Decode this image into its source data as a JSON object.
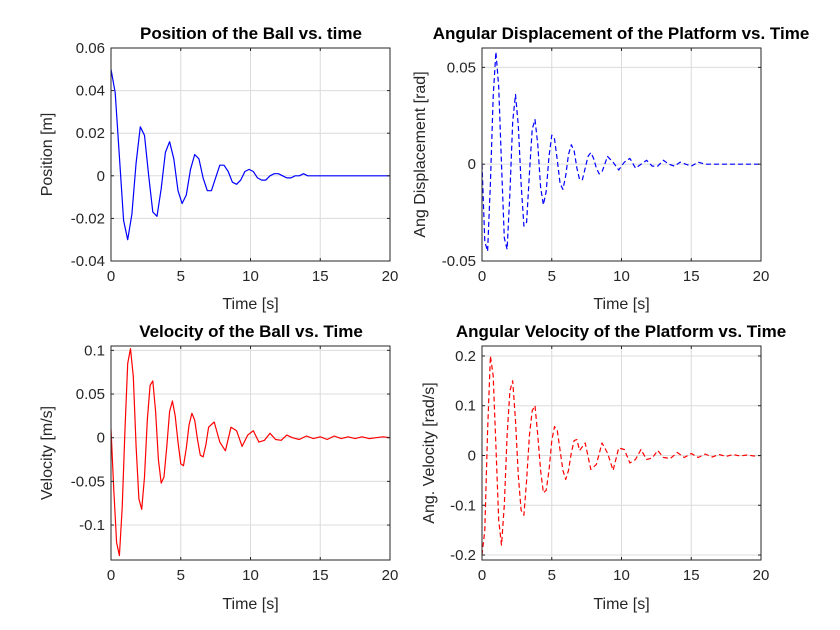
{
  "chart_data": [
    {
      "type": "line",
      "title": "Position of the Ball vs. time",
      "xlabel": "Time [s]",
      "ylabel": "Position [m]",
      "xlim": [
        0,
        20
      ],
      "ylim": [
        -0.04,
        0.06
      ],
      "xticks": [
        0,
        5,
        10,
        15,
        20
      ],
      "xtick_labels": [
        "0",
        "5",
        "10",
        "15",
        "20"
      ],
      "yticks": [
        -0.04,
        -0.02,
        0,
        0.02,
        0.04,
        0.06
      ],
      "ytick_labels": [
        "-0.04",
        "-0.02",
        "0",
        "0.02",
        "0.04",
        "0.06"
      ],
      "grid": true,
      "line_style": "solid",
      "color": "#0000ff",
      "series": [
        {
          "x": [
            0,
            0.3,
            0.6,
            0.9,
            1.2,
            1.5,
            1.8,
            2.1,
            2.4,
            2.7,
            3.0,
            3.3,
            3.6,
            3.9,
            4.2,
            4.5,
            4.8,
            5.1,
            5.4,
            5.7,
            6.0,
            6.3,
            6.6,
            6.9,
            7.2,
            7.5,
            7.8,
            8.1,
            8.4,
            8.7,
            9.0,
            9.3,
            9.6,
            9.9,
            10.2,
            10.5,
            10.8,
            11.1,
            11.4,
            11.7,
            12.0,
            12.3,
            12.6,
            12.9,
            13.2,
            13.5,
            13.8,
            14.1,
            14.4,
            14.7,
            15.0,
            15.3,
            15.6,
            15.9,
            16.2,
            16.5,
            16.8,
            17.1,
            17.4,
            17.7,
            18.0,
            18.3,
            18.6,
            18.9,
            19.2,
            19.5,
            19.8,
            20.0
          ],
          "y": [
            0.05,
            0.039,
            0.009,
            -0.021,
            -0.03,
            -0.018,
            0.006,
            0.023,
            0.019,
            0.0,
            -0.017,
            -0.019,
            -0.006,
            0.011,
            0.016,
            0.008,
            -0.007,
            -0.013,
            -0.009,
            0.003,
            0.01,
            0.008,
            -0.001,
            -0.007,
            -0.007,
            -0.001,
            0.005,
            0.005,
            0.002,
            -0.003,
            -0.004,
            -0.002,
            0.002,
            0.003,
            0.002,
            -0.001,
            -0.002,
            -0.002,
            0.0,
            0.001,
            0.001,
            0.0,
            -0.001,
            -0.001,
            0.0,
            0.0,
            0.001,
            0.0,
            0.0,
            0.0,
            0.0,
            0.0,
            0.0,
            0.0,
            0.0,
            0.0,
            0.0,
            0.0,
            0.0,
            0.0,
            0.0,
            0.0,
            0.0,
            0.0,
            0.0,
            0.0,
            0.0,
            0.0
          ]
        }
      ]
    },
    {
      "type": "line",
      "title": "Angular Displacement of the Platform vs. Time",
      "xlabel": "Time [s]",
      "ylabel": "Ang Displacement [rad]",
      "xlim": [
        0,
        20
      ],
      "ylim": [
        -0.05,
        0.06
      ],
      "xticks": [
        0,
        5,
        10,
        15,
        20
      ],
      "xtick_labels": [
        "0",
        "5",
        "10",
        "15",
        "20"
      ],
      "yticks": [
        -0.05,
        0,
        0.05
      ],
      "ytick_labels": [
        "-0.05",
        "0",
        "0.05"
      ],
      "grid": true,
      "line_style": "dashed",
      "color": "#0000ff",
      "series": [
        {
          "x": [
            0,
            0.2,
            0.4,
            0.6,
            0.8,
            1.0,
            1.2,
            1.4,
            1.6,
            1.8,
            2.0,
            2.2,
            2.4,
            2.6,
            2.8,
            3.0,
            3.2,
            3.4,
            3.6,
            3.8,
            4.0,
            4.2,
            4.4,
            4.6,
            4.8,
            5.0,
            5.2,
            5.4,
            5.6,
            5.8,
            6.0,
            6.2,
            6.4,
            6.6,
            6.8,
            7.0,
            7.2,
            7.4,
            7.6,
            7.8,
            8.0,
            8.2,
            8.4,
            8.6,
            8.8,
            9.0,
            9.4,
            9.8,
            10.2,
            10.6,
            11.0,
            11.4,
            11.8,
            12.2,
            12.6,
            13.0,
            13.4,
            13.8,
            14.2,
            14.6,
            15.0,
            15.5,
            16.0,
            16.5,
            17.0,
            17.5,
            18.0,
            18.5,
            19.0,
            19.5,
            20.0
          ],
          "y": [
            0.0,
            -0.04,
            -0.045,
            -0.01,
            0.035,
            0.058,
            0.04,
            0.0,
            -0.038,
            -0.044,
            -0.015,
            0.022,
            0.036,
            0.02,
            -0.01,
            -0.032,
            -0.03,
            -0.005,
            0.018,
            0.023,
            0.01,
            -0.012,
            -0.021,
            -0.014,
            0.004,
            0.015,
            0.013,
            0.002,
            -0.01,
            -0.013,
            -0.006,
            0.005,
            0.01,
            0.007,
            -0.002,
            -0.008,
            -0.008,
            -0.002,
            0.004,
            0.006,
            0.003,
            -0.002,
            -0.005,
            -0.004,
            0.0,
            0.004,
            0.001,
            -0.003,
            0.001,
            0.003,
            -0.002,
            0.0,
            0.002,
            -0.001,
            -0.001,
            0.002,
            0.0,
            -0.001,
            0.001,
            0.0,
            -0.001,
            0.001,
            0.0,
            0.0,
            0.0,
            0.0,
            0.0,
            0.0,
            0.0,
            0.0,
            0.0
          ]
        }
      ]
    },
    {
      "type": "line",
      "title": "Velocity of the Ball vs. Time",
      "xlabel": "Time [s]",
      "ylabel": "Velocity [m/s]",
      "xlim": [
        0,
        20
      ],
      "ylim": [
        -0.14,
        0.105
      ],
      "xticks": [
        0,
        5,
        10,
        15,
        20
      ],
      "xtick_labels": [
        "0",
        "5",
        "10",
        "15",
        "20"
      ],
      "yticks": [
        -0.1,
        -0.05,
        0,
        0.05,
        0.1
      ],
      "ytick_labels": [
        "-0.1",
        "-0.05",
        "0",
        "0.05",
        "0.1"
      ],
      "grid": true,
      "line_style": "solid",
      "color": "#ff0000",
      "series": [
        {
          "x": [
            0,
            0.2,
            0.4,
            0.6,
            0.8,
            1.0,
            1.2,
            1.4,
            1.6,
            1.8,
            2.0,
            2.2,
            2.4,
            2.6,
            2.8,
            3.0,
            3.2,
            3.4,
            3.6,
            3.8,
            4.0,
            4.2,
            4.4,
            4.6,
            4.8,
            5.0,
            5.2,
            5.4,
            5.6,
            5.8,
            6.0,
            6.2,
            6.4,
            6.6,
            6.8,
            7.0,
            7.4,
            7.8,
            8.2,
            8.6,
            9.0,
            9.4,
            9.8,
            10.2,
            10.6,
            11.0,
            11.4,
            11.8,
            12.2,
            12.6,
            13.0,
            13.5,
            14.0,
            14.5,
            15.0,
            15.5,
            16.0,
            16.5,
            17.0,
            17.5,
            18.0,
            18.5,
            19.0,
            19.5,
            20.0
          ],
          "y": [
            0.01,
            -0.06,
            -0.12,
            -0.135,
            -0.08,
            0.01,
            0.085,
            0.102,
            0.07,
            -0.01,
            -0.07,
            -0.082,
            -0.045,
            0.02,
            0.06,
            0.065,
            0.03,
            -0.025,
            -0.052,
            -0.045,
            -0.01,
            0.03,
            0.042,
            0.025,
            -0.005,
            -0.03,
            -0.032,
            -0.012,
            0.015,
            0.028,
            0.02,
            -0.002,
            -0.02,
            -0.022,
            -0.008,
            0.012,
            0.018,
            -0.005,
            -0.015,
            0.012,
            0.008,
            -0.01,
            0.003,
            0.008,
            -0.005,
            -0.003,
            0.005,
            -0.002,
            -0.003,
            0.003,
            0.0,
            -0.002,
            0.002,
            -0.001,
            0.001,
            -0.002,
            0.002,
            -0.001,
            0.001,
            -0.001,
            0.001,
            -0.001,
            0.0,
            0.001,
            0.0
          ]
        }
      ]
    },
    {
      "type": "line",
      "title": "Angular Velocity of the Platform vs. Time",
      "xlabel": "Time [s]",
      "ylabel": "Ang. Velocity [rad/s]",
      "xlim": [
        0,
        20
      ],
      "ylim": [
        -0.21,
        0.22
      ],
      "xticks": [
        0,
        5,
        10,
        15,
        20
      ],
      "xtick_labels": [
        "0",
        "5",
        "10",
        "15",
        "20"
      ],
      "yticks": [
        -0.2,
        -0.1,
        0,
        0.1,
        0.2
      ],
      "ytick_labels": [
        "-0.2",
        "-0.1",
        "0",
        "0.1",
        "0.2"
      ],
      "grid": true,
      "line_style": "dashed",
      "color": "#ff0000",
      "series": [
        {
          "x": [
            0,
            0.2,
            0.4,
            0.6,
            0.8,
            1.0,
            1.2,
            1.4,
            1.6,
            1.8,
            2.0,
            2.2,
            2.4,
            2.6,
            2.8,
            3.0,
            3.2,
            3.4,
            3.6,
            3.8,
            4.0,
            4.2,
            4.4,
            4.6,
            4.8,
            5.0,
            5.2,
            5.4,
            5.6,
            5.8,
            6.0,
            6.2,
            6.4,
            6.6,
            6.8,
            7.0,
            7.4,
            7.8,
            8.2,
            8.6,
            9.0,
            9.4,
            9.8,
            10.2,
            10.6,
            11.0,
            11.4,
            11.8,
            12.2,
            12.6,
            13.0,
            13.5,
            14.0,
            14.5,
            15.0,
            15.5,
            16.0,
            16.5,
            17.0,
            17.5,
            18.0,
            18.5,
            19.0,
            19.5,
            20.0
          ],
          "y": [
            -0.2,
            -0.15,
            0.05,
            0.2,
            0.16,
            0.02,
            -0.13,
            -0.18,
            -0.1,
            0.04,
            0.13,
            0.15,
            0.07,
            -0.04,
            -0.11,
            -0.12,
            -0.05,
            0.04,
            0.09,
            0.1,
            0.04,
            -0.03,
            -0.075,
            -0.07,
            -0.03,
            0.03,
            0.058,
            0.05,
            0.01,
            -0.03,
            -0.048,
            -0.03,
            0.005,
            0.03,
            0.032,
            0.01,
            0.025,
            -0.028,
            -0.018,
            0.025,
            0.005,
            -0.03,
            0.015,
            0.012,
            -0.015,
            -0.008,
            0.012,
            -0.008,
            -0.005,
            0.01,
            -0.004,
            -0.006,
            0.006,
            -0.004,
            0.004,
            -0.004,
            0.003,
            -0.003,
            0.002,
            -0.002,
            0.002,
            -0.001,
            0.001,
            -0.001,
            0.0
          ]
        }
      ]
    }
  ]
}
